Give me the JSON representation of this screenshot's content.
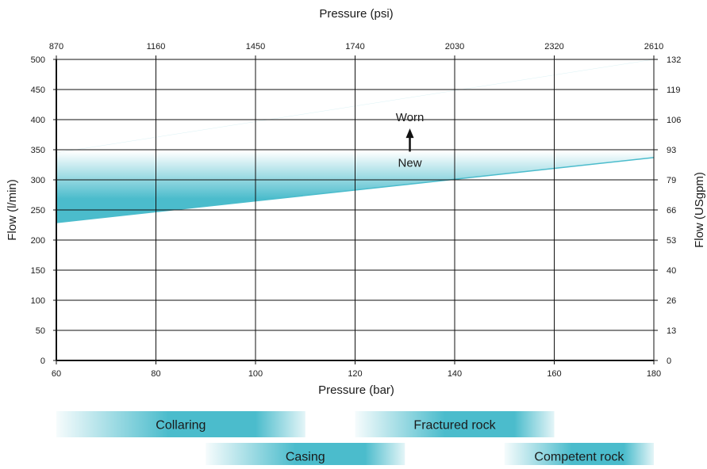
{
  "chart_data": {
    "type": "area",
    "title": "",
    "xlabel": "Pressure (bar)",
    "x2label": "Pressure (psi)",
    "ylabel": "Flow (l/min)",
    "y2label": "Flow (USgpm)",
    "xlim": [
      60,
      180
    ],
    "ylim": [
      0,
      500
    ],
    "x_ticks": [
      60,
      80,
      100,
      120,
      140,
      160,
      180
    ],
    "x2_ticks": [
      "870",
      "1160",
      "1450",
      "1740",
      "2030",
      "2320",
      "2610"
    ],
    "y_ticks": [
      0,
      50,
      100,
      150,
      200,
      250,
      300,
      350,
      400,
      450,
      500
    ],
    "y2_ticks": [
      "0",
      "13",
      "26",
      "40",
      "53",
      "66",
      "79",
      "93",
      "106",
      "119",
      "132"
    ],
    "grid": true,
    "band": {
      "x": [
        60,
        180
      ],
      "lower": [
        229,
        337
      ],
      "upper": [
        345,
        500
      ]
    },
    "band_color": "#4bbccc",
    "annotations": {
      "upper_label": "Worn",
      "lower_label": "New",
      "arrow_x": 131
    },
    "application_ranges": [
      {
        "label": "Collaring",
        "from": 60,
        "to": 110,
        "row": 0
      },
      {
        "label": "Fractured rock",
        "from": 120,
        "to": 160,
        "row": 0
      },
      {
        "label": "Casing",
        "from": 90,
        "to": 130,
        "row": 1
      },
      {
        "label": "Competent rock",
        "from": 150,
        "to": 180,
        "row": 1
      }
    ]
  }
}
